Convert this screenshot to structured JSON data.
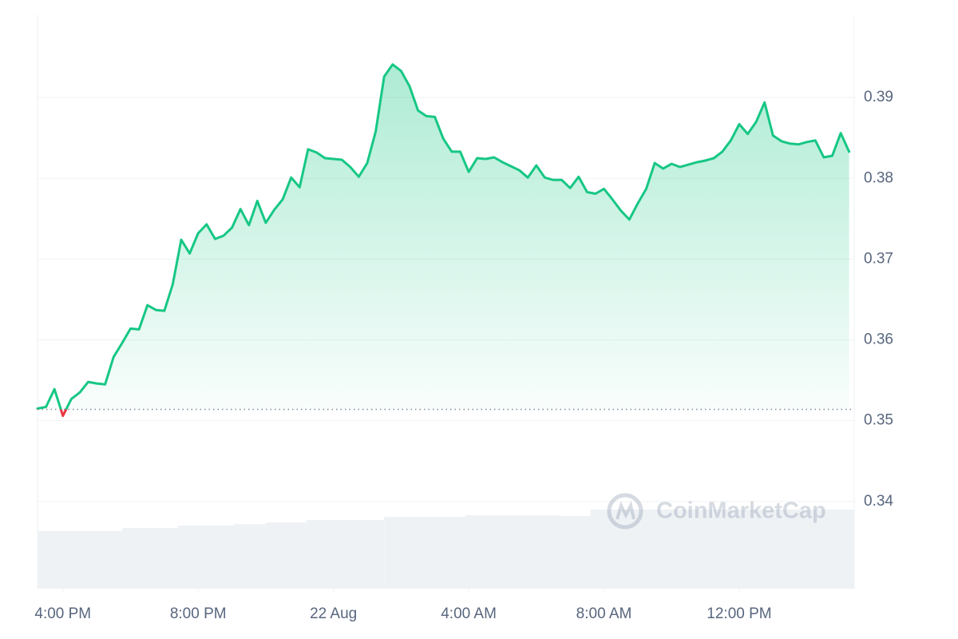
{
  "chart_data": {
    "type": "line",
    "color": "#16c784",
    "negative_color": "#ea3943",
    "baseline": 0.3514,
    "watermark": "CoinMarketCap",
    "xlim": [
      15.25,
      39.4
    ],
    "xticks": [
      {
        "value": 16,
        "label": "4:00 PM"
      },
      {
        "value": 20,
        "label": "8:00 PM"
      },
      {
        "value": 24,
        "label": "22 Aug"
      },
      {
        "value": 28,
        "label": "4:00 AM"
      },
      {
        "value": 32,
        "label": "8:00 AM"
      },
      {
        "value": 36,
        "label": "12:00 PM"
      }
    ],
    "ylim": [
      0.3292,
      0.4003
    ],
    "yticks": [
      0.34,
      0.35,
      0.36,
      0.37,
      0.38,
      0.39
    ],
    "grid": true,
    "x": [
      15.25,
      15.5,
      15.75,
      16,
      16.25,
      16.5,
      16.75,
      17,
      17.25,
      17.5,
      17.75,
      18,
      18.25,
      18.5,
      18.75,
      19,
      19.25,
      19.5,
      19.75,
      20,
      20.25,
      20.5,
      20.75,
      21,
      21.25,
      21.5,
      21.75,
      22,
      22.25,
      22.5,
      22.75,
      23,
      23.25,
      23.5,
      23.75,
      24,
      24.25,
      24.5,
      24.75,
      25,
      25.25,
      25.5,
      25.75,
      26,
      26.25,
      26.5,
      26.75,
      27,
      27.25,
      27.5,
      27.75,
      28,
      28.25,
      28.5,
      28.75,
      29,
      29.25,
      29.5,
      29.75,
      30,
      30.25,
      30.5,
      30.75,
      31,
      31.25,
      31.5,
      31.75,
      32,
      32.25,
      32.5,
      32.75,
      33,
      33.25,
      33.5,
      33.75,
      34,
      34.25,
      34.5,
      34.75,
      35,
      35.25,
      35.5,
      35.75,
      36,
      36.25,
      36.5,
      36.75,
      37,
      37.25,
      37.5,
      37.75,
      38,
      38.25,
      38.5,
      38.75,
      39,
      39.25
    ],
    "values": [
      0.3515,
      0.3517,
      0.3539,
      0.3506,
      0.3527,
      0.3535,
      0.3548,
      0.3546,
      0.3545,
      0.3579,
      0.3596,
      0.3614,
      0.3613,
      0.3643,
      0.3637,
      0.3636,
      0.3669,
      0.3724,
      0.3707,
      0.3732,
      0.3743,
      0.3725,
      0.3729,
      0.3739,
      0.3762,
      0.3742,
      0.3772,
      0.3745,
      0.3761,
      0.3774,
      0.3801,
      0.3789,
      0.3836,
      0.3832,
      0.3825,
      0.3824,
      0.3823,
      0.3814,
      0.3802,
      0.3819,
      0.3858,
      0.3926,
      0.3941,
      0.3933,
      0.3914,
      0.3884,
      0.3877,
      0.3876,
      0.3849,
      0.3833,
      0.3833,
      0.3808,
      0.3825,
      0.3824,
      0.3826,
      0.382,
      0.3815,
      0.381,
      0.3801,
      0.3816,
      0.3801,
      0.3798,
      0.3798,
      0.3788,
      0.3802,
      0.3783,
      0.3781,
      0.3787,
      0.3774,
      0.376,
      0.3749,
      0.3769,
      0.3787,
      0.3819,
      0.3812,
      0.3818,
      0.3814,
      0.3817,
      0.382,
      0.3822,
      0.3825,
      0.3833,
      0.3847,
      0.3867,
      0.3855,
      0.387,
      0.3894,
      0.3853,
      0.3846,
      0.3843,
      0.3842,
      0.3845,
      0.3847,
      0.3826,
      0.3828,
      0.3856,
      0.3833
    ],
    "volume": {
      "color": "#eff2f5",
      "ylim": [
        0,
        100
      ],
      "x": [
        15.25,
        17.76,
        19.4,
        21.06,
        22.0,
        23.2,
        25.5,
        27.9,
        30.7,
        31.6
      ],
      "values": [
        52.6,
        55.5,
        57.7,
        59.0,
        60.6,
        62.8,
        65.7,
        67.2,
        66.4,
        72.3
      ]
    }
  }
}
